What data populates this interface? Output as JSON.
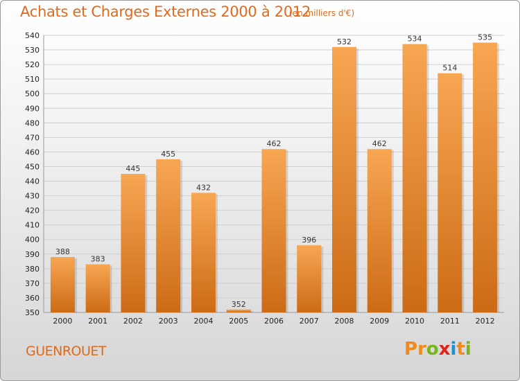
{
  "header": {
    "title": "Achats et Charges Externes 2000 à 2012",
    "subtitle": "(en milliers d'€)"
  },
  "footer": {
    "commune": "GUENROUET",
    "logo": [
      "P",
      "r",
      "o",
      "x",
      "i",
      "t",
      "i"
    ]
  },
  "colors": {
    "bar_light": "#f7a652",
    "bar_dark": "#cd6b15",
    "accent": "#e06a1c",
    "logo_colors": [
      "#f08a1c",
      "#f08a1c",
      "#7ab51d",
      "#e2231a",
      "#1c8fd1",
      "#f08a1c",
      "#7ab51d"
    ]
  },
  "chart_data": {
    "type": "bar",
    "title": "Achats et Charges Externes 2000 à 2012",
    "subtitle": "(en milliers d'€)",
    "categories": [
      "2000",
      "2001",
      "2002",
      "2003",
      "2004",
      "2005",
      "2006",
      "2007",
      "2008",
      "2009",
      "2010",
      "2011",
      "2012"
    ],
    "values": [
      388,
      383,
      445,
      455,
      432,
      352,
      462,
      396,
      532,
      462,
      534,
      514,
      535
    ],
    "ylim": [
      350,
      540
    ],
    "yticks": [
      350,
      360,
      370,
      380,
      390,
      400,
      410,
      420,
      430,
      440,
      450,
      460,
      470,
      480,
      490,
      500,
      510,
      520,
      530,
      540
    ],
    "grid": true,
    "xlabel": "",
    "ylabel": ""
  }
}
